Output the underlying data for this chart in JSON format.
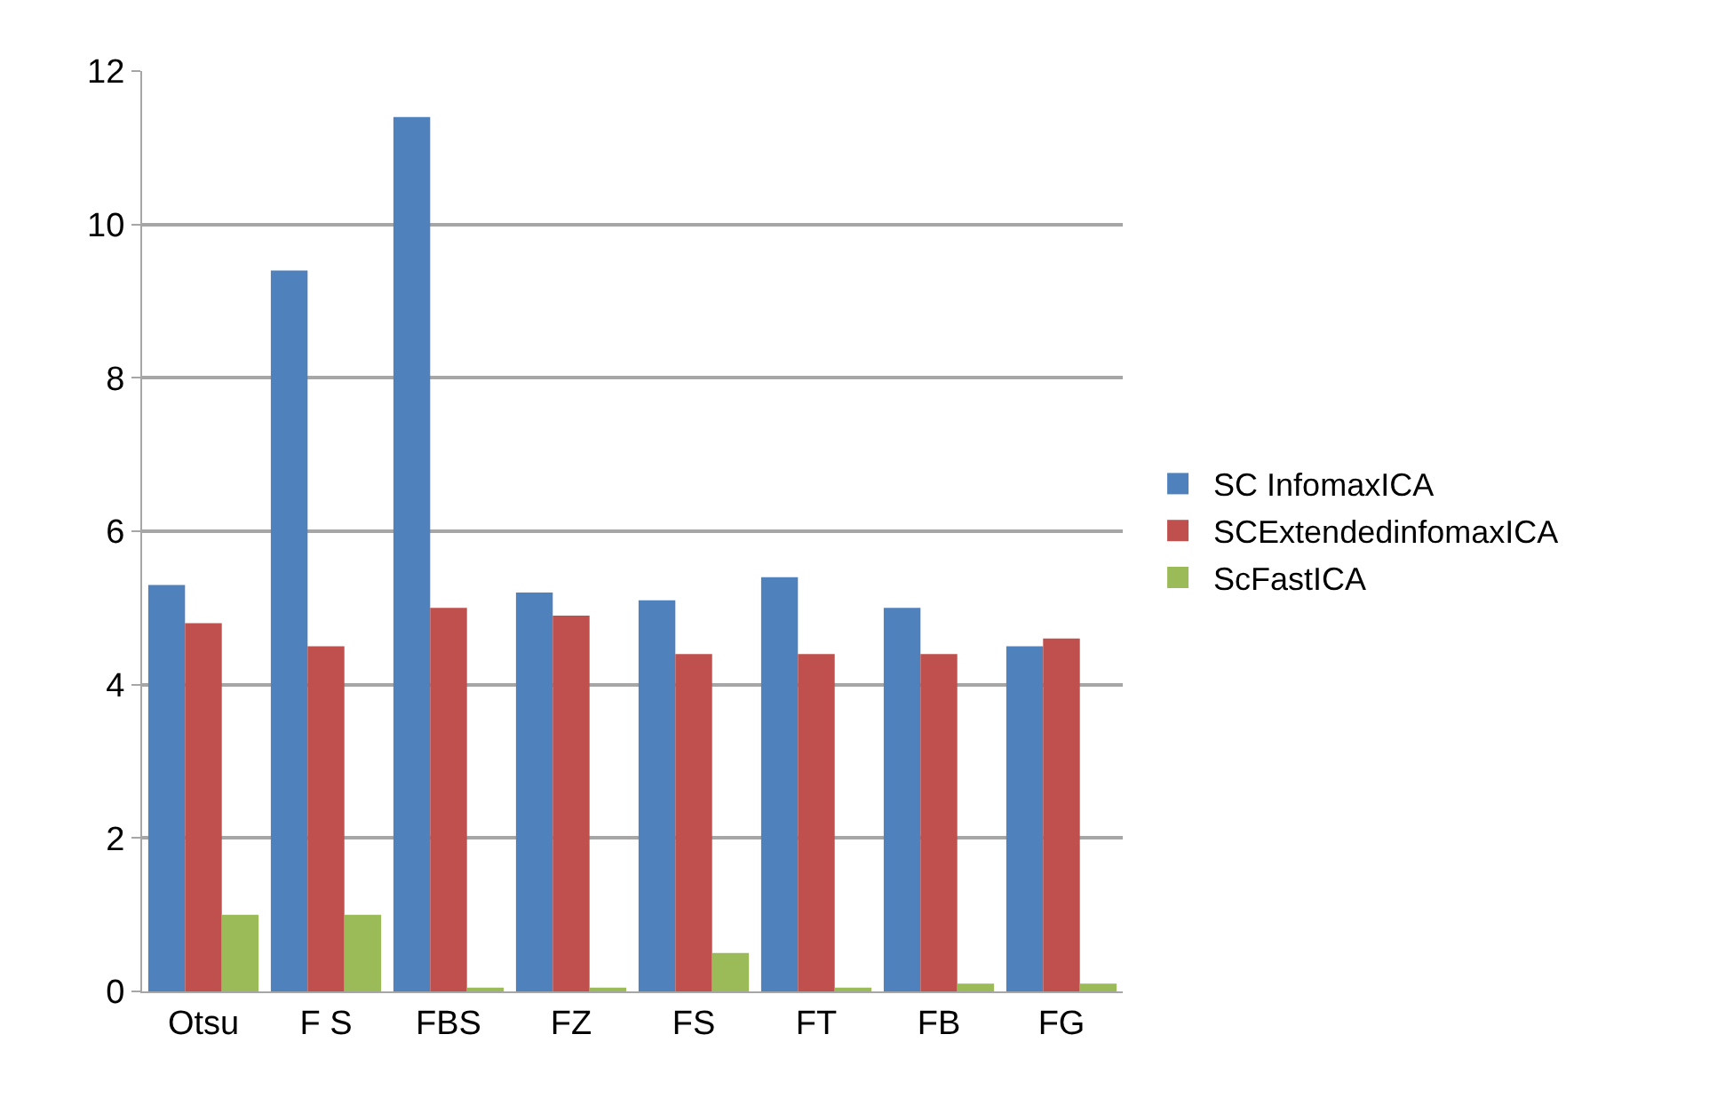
{
  "chart_data": {
    "type": "bar",
    "categories": [
      "Otsu",
      "F S",
      "FBS",
      "FZ",
      "FS",
      "FT",
      "FB",
      "FG"
    ],
    "series": [
      {
        "name": "SC InfomaxICA",
        "color": "#4f81bd",
        "values": [
          5.3,
          9.4,
          11.4,
          5.2,
          5.1,
          5.4,
          5.0,
          4.5
        ]
      },
      {
        "name": "SCExtendedinfomaxICA",
        "color": "#c0504d",
        "values": [
          4.8,
          4.5,
          5.0,
          4.9,
          4.4,
          4.4,
          4.4,
          4.6
        ]
      },
      {
        "name": "ScFastICA",
        "color": "#9bbb59",
        "values": [
          1.0,
          1.0,
          0.05,
          0.05,
          0.5,
          0.05,
          0.1,
          0.1
        ]
      }
    ],
    "ylim": [
      0,
      12
    ],
    "yticks": [
      0,
      2,
      4,
      6,
      8,
      10,
      12
    ],
    "grid": "y",
    "legend": "right"
  }
}
